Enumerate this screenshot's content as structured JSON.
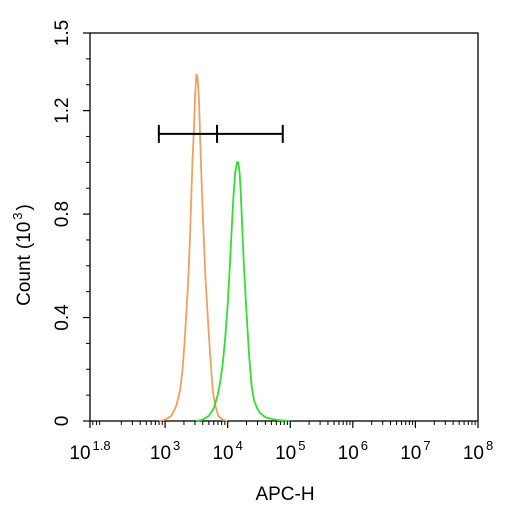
{
  "chart_data": {
    "type": "line",
    "title": "",
    "xlabel": "APC-H",
    "ylabel": "Count",
    "ylabel_unit_prefix": "(10",
    "ylabel_unit_exp": "3",
    "ylabel_unit_suffix": ")",
    "x_scale": "log10",
    "xlim": [
      1.8,
      8
    ],
    "ylim": [
      0,
      1.5
    ],
    "grid": false,
    "legend": "none",
    "x_ticks": [
      {
        "value": 1.8,
        "base": "10",
        "exp": "1.8"
      },
      {
        "value": 3,
        "base": "10",
        "exp": "3"
      },
      {
        "value": 4,
        "base": "10",
        "exp": "4"
      },
      {
        "value": 5,
        "base": "10",
        "exp": "5"
      },
      {
        "value": 6,
        "base": "10",
        "exp": "6"
      },
      {
        "value": 7,
        "base": "10",
        "exp": "7"
      },
      {
        "value": 8,
        "base": "10",
        "exp": "8"
      }
    ],
    "y_ticks": [
      {
        "value": 0,
        "label": "0"
      },
      {
        "value": 0.4,
        "label": "0.4"
      },
      {
        "value": 0.8,
        "label": "0.8"
      },
      {
        "value": 1.2,
        "label": "1.2"
      },
      {
        "value": 1.5,
        "label": "1.5"
      }
    ],
    "series": [
      {
        "color": "#f0a060",
        "x": [
          2.9,
          3.0,
          3.1,
          3.18,
          3.24,
          3.28,
          3.31,
          3.34,
          3.37,
          3.4,
          3.42,
          3.44,
          3.46,
          3.48,
          3.5,
          3.52,
          3.54,
          3.56,
          3.58,
          3.6,
          3.62,
          3.64,
          3.67,
          3.7,
          3.73,
          3.76,
          3.8,
          3.85,
          3.92,
          4.0
        ],
        "y": [
          0,
          0.005,
          0.02,
          0.06,
          0.12,
          0.2,
          0.3,
          0.42,
          0.55,
          0.72,
          0.88,
          1.02,
          1.12,
          1.26,
          1.34,
          1.33,
          1.25,
          1.1,
          0.95,
          0.82,
          0.7,
          0.58,
          0.45,
          0.33,
          0.22,
          0.12,
          0.06,
          0.02,
          0.005,
          0
        ]
      },
      {
        "color": "#33dd33",
        "x": [
          3.5,
          3.6,
          3.7,
          3.78,
          3.84,
          3.88,
          3.92,
          3.96,
          4.0,
          4.03,
          4.06,
          4.09,
          4.12,
          4.15,
          4.17,
          4.19,
          4.21,
          4.23,
          4.26,
          4.3,
          4.34,
          4.38,
          4.42,
          4.47,
          4.52,
          4.6,
          4.7,
          4.8,
          4.9,
          5.0
        ],
        "y": [
          0,
          0.005,
          0.02,
          0.05,
          0.1,
          0.15,
          0.22,
          0.32,
          0.45,
          0.58,
          0.72,
          0.86,
          0.96,
          1.0,
          1.0,
          0.96,
          0.88,
          0.76,
          0.6,
          0.42,
          0.26,
          0.14,
          0.08,
          0.05,
          0.03,
          0.015,
          0.008,
          0.004,
          0.002,
          0
        ]
      }
    ],
    "gate": {
      "x_start": 2.9,
      "x_mid": 3.83,
      "x_end": 4.88,
      "y": 1.11
    }
  }
}
